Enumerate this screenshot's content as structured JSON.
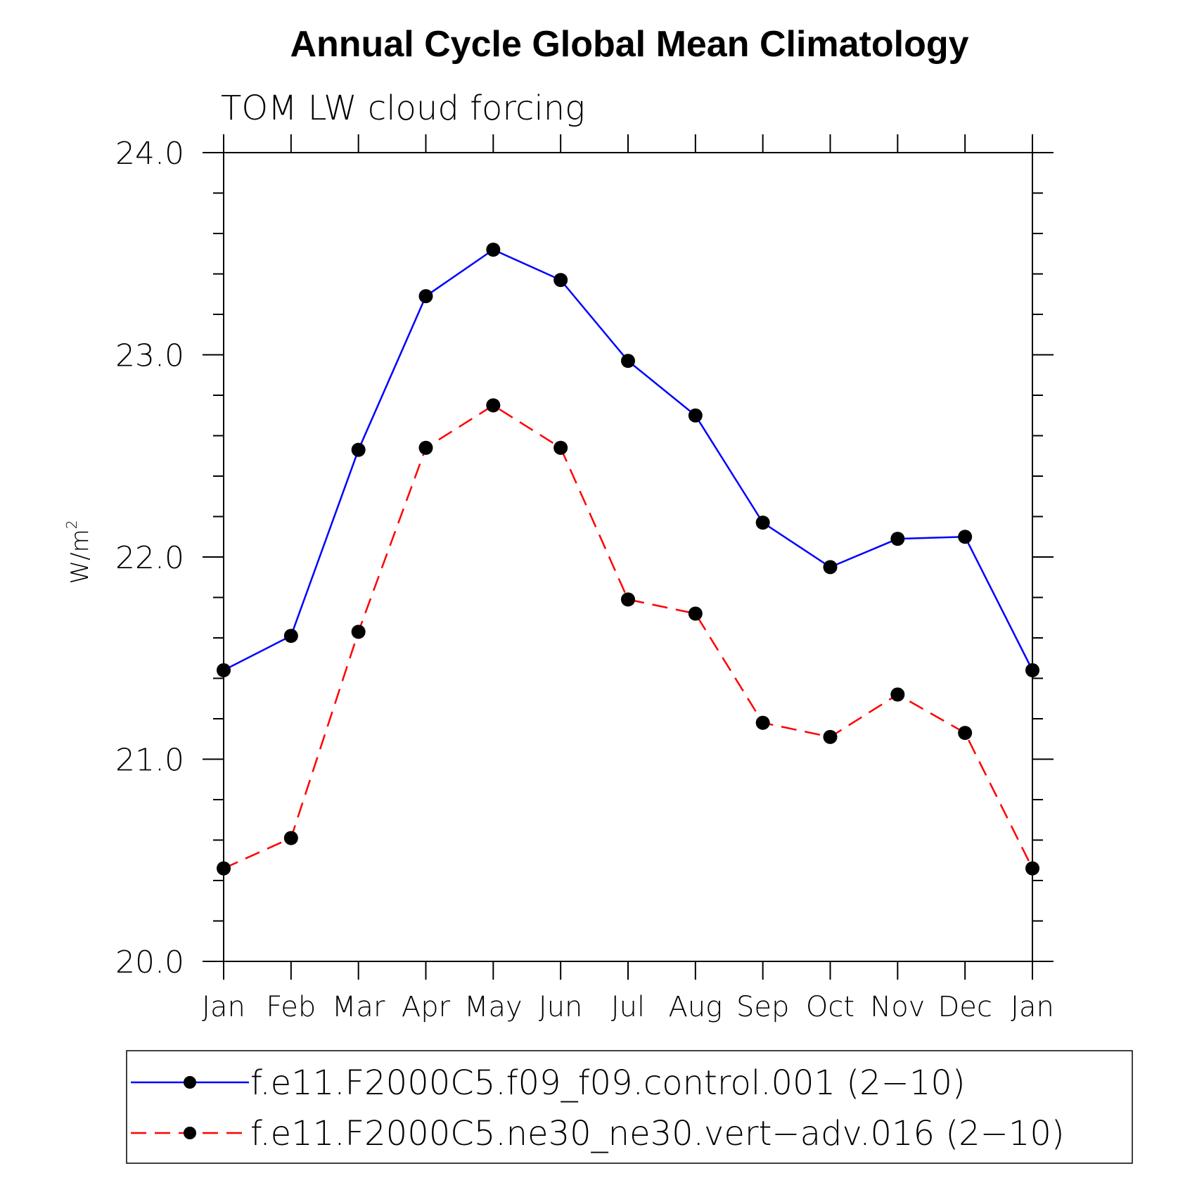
{
  "chart_data": {
    "type": "line",
    "title": "Annual Cycle Global Mean Climatology",
    "subtitle": "TOM LW cloud forcing",
    "ylabel": "W/m",
    "ylabel_sup": "2",
    "xlabel": "",
    "categories": [
      "Jan",
      "Feb",
      "Mar",
      "Apr",
      "May",
      "Jun",
      "Jul",
      "Aug",
      "Sep",
      "Oct",
      "Nov",
      "Dec",
      "Jan"
    ],
    "ylim": [
      20.0,
      24.0
    ],
    "yticks": [
      "20.0",
      "21.0",
      "22.0",
      "23.0",
      "24.0"
    ],
    "legend_position": "bottom",
    "series": [
      {
        "name": "f.e11.F2000C5.f09_f09.control.001 (2−10)",
        "color": "#0000ff",
        "dash": "solid",
        "values": [
          21.44,
          21.61,
          22.53,
          23.29,
          23.52,
          23.37,
          22.97,
          22.7,
          22.17,
          21.95,
          22.09,
          22.1,
          21.44
        ]
      },
      {
        "name": "f.e11.F2000C5.ne30_ne30.vert−adv.016 (2−10)",
        "color": "#ff0000",
        "dash": "dashed",
        "values": [
          20.46,
          20.61,
          21.63,
          22.54,
          22.75,
          22.54,
          21.79,
          21.72,
          21.18,
          21.11,
          21.32,
          21.13,
          20.46
        ]
      }
    ]
  }
}
